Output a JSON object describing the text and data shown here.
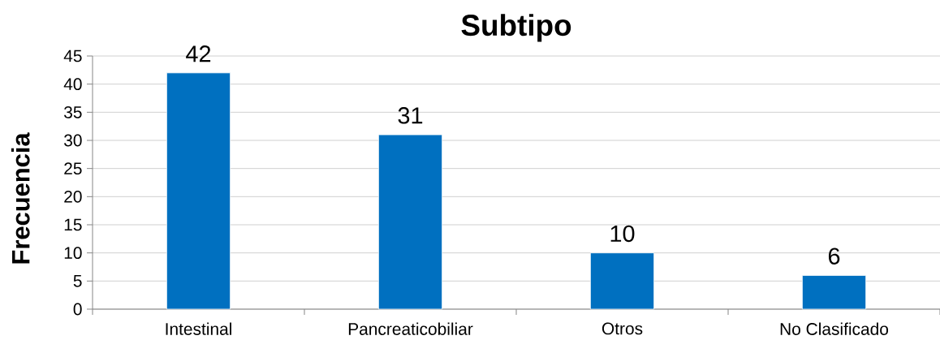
{
  "chart_data": {
    "type": "bar",
    "title": "Subtipo",
    "ylabel": "Frecuencia",
    "categories": [
      "Intestinal",
      "Pancreaticobiliar",
      "Otros",
      "No Clasificado"
    ],
    "values": [
      42,
      31,
      10,
      6
    ],
    "color": "#0070c0",
    "ylim": [
      0,
      45
    ],
    "yticks": [
      0,
      5,
      10,
      15,
      20,
      25,
      30,
      35,
      40,
      45
    ],
    "grid": "y",
    "data_labels": true
  }
}
